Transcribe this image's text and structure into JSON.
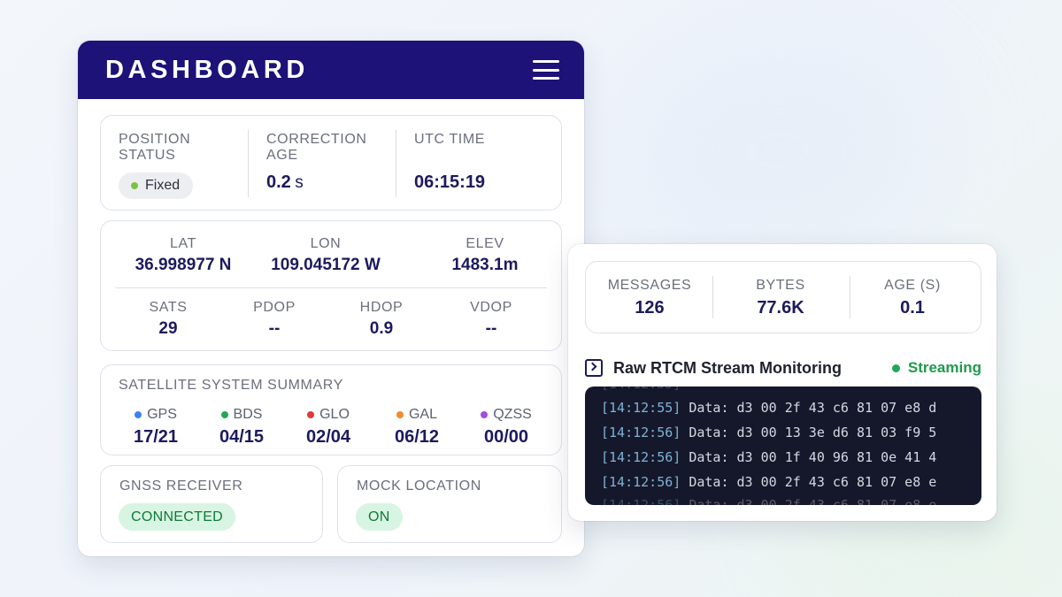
{
  "dashboard": {
    "title": "DASHBOARD",
    "menu_icon": "hamburger-menu-icon",
    "position_status": {
      "label": "POSITION STATUS",
      "value": "Fixed",
      "dot_color": "#7cc243"
    },
    "correction_age": {
      "label": "CORRECTION AGE",
      "value": "0.2",
      "unit": "s"
    },
    "utc_time": {
      "label": "UTC TIME",
      "value": "06:15:19"
    },
    "position": {
      "lat": {
        "label": "LAT",
        "value": "36.998977 N"
      },
      "lon": {
        "label": "LON",
        "value": "109.045172 W"
      },
      "elev": {
        "label": "ELEV",
        "value": "1483.1m"
      },
      "sats": {
        "label": "SATS",
        "value": "29"
      },
      "pdop": {
        "label": "PDOP",
        "value": "--"
      },
      "hdop": {
        "label": "HDOP",
        "value": "0.9"
      },
      "vdop": {
        "label": "VDOP",
        "value": "--"
      }
    },
    "satellite_summary": {
      "title": "SATELLITE SYSTEM SUMMARY",
      "systems": [
        {
          "name": "GPS",
          "value": "17/21",
          "color": "#3b82f6"
        },
        {
          "name": "BDS",
          "value": "04/15",
          "color": "#22a855"
        },
        {
          "name": "GLO",
          "value": "02/04",
          "color": "#e0383b"
        },
        {
          "name": "GAL",
          "value": "06/12",
          "color": "#f28a2e"
        },
        {
          "name": "QZSS",
          "value": "00/00",
          "color": "#a24ee0"
        }
      ]
    },
    "gnss_receiver": {
      "label": "GNSS RECEIVER",
      "status": "CONNECTED"
    },
    "mock_location": {
      "label": "MOCK LOCATION",
      "status": "ON"
    }
  },
  "rtcm": {
    "stats": {
      "messages": {
        "label": "MESSAGES",
        "value": "126"
      },
      "bytes": {
        "label": "BYTES",
        "value": "77.6K"
      },
      "age": {
        "label": "AGE (S)",
        "value": "0.1"
      }
    },
    "stream_title": "Raw RTCM Stream Monitoring",
    "stream_icon": "terminal-icon",
    "stream_status": "Streaming",
    "stream_status_color": "#22a855",
    "lines": [
      {
        "ts": "[14:12:55]",
        "data": " Data: d3 00 2f 43 c6 81 07 e8 d"
      },
      {
        "ts": "[14:12:56]",
        "data": " Data: d3 00 13 3e d6 81 03 f9 5"
      },
      {
        "ts": "[14:12:56]",
        "data": " Data: d3 00 1f 40 96 81 0e 41 4"
      },
      {
        "ts": "[14:12:56]",
        "data": " Data: d3 00 2f 43 c6 81 07 e8 e"
      }
    ]
  }
}
